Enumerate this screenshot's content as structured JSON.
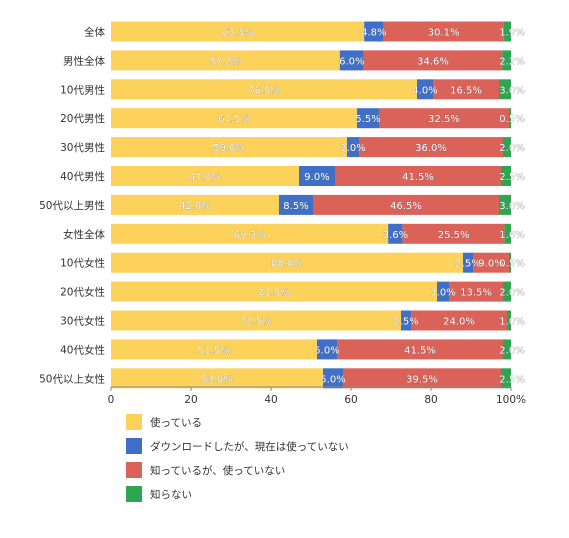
{
  "chart_data": {
    "type": "bar",
    "orientation": "horizontal",
    "stacked": true,
    "categories": [
      "全体",
      "男性全体",
      "10代男性",
      "20代男性",
      "30代男性",
      "40代男性",
      "50代以上男性",
      "女性全体",
      "10代女性",
      "20代女性",
      "30代女性",
      "40代女性",
      "50代以上女性"
    ],
    "series": [
      {
        "name": "使っている",
        "color": "#fcd25b",
        "values": [
          63.3,
          57.2,
          76.5,
          61.5,
          59.0,
          47.0,
          42.0,
          69.3,
          88.0,
          81.5,
          72.5,
          51.5,
          53.0
        ],
        "labels": [
          "63.3%",
          "57.2%",
          "76.5%",
          "61.5%",
          "59.0%",
          "47.0%",
          "42.0%",
          "69.3%",
          "88.0%",
          "81.5%",
          "72.5%",
          "51.5%",
          "53.0%"
        ]
      },
      {
        "name": "ダウンロードしたが、現在は使っていない",
        "color": "#3f6fc6",
        "values": [
          4.8,
          6.0,
          4.0,
          5.5,
          3.0,
          9.0,
          8.5,
          3.6,
          2.5,
          3.0,
          2.5,
          5.0,
          5.0
        ],
        "labels": [
          "4.8%",
          "6.0%",
          "4.0%",
          "5.5%",
          "3.0%",
          "9.0%",
          "8.5%",
          "3.6%",
          "2.5%",
          "3.0%",
          "2.5%",
          "5.0%",
          "5.0%"
        ]
      },
      {
        "name": "知っているが、使っていない",
        "color": "#db6259",
        "values": [
          30.1,
          34.6,
          16.5,
          32.5,
          36.0,
          41.5,
          46.5,
          25.5,
          9.0,
          13.5,
          24.0,
          41.5,
          39.5
        ],
        "labels": [
          "30.1%",
          "34.6%",
          "16.5%",
          "32.5%",
          "36.0%",
          "41.5%",
          "46.5%",
          "25.5%",
          "9.0%",
          "13.5%",
          "24.0%",
          "41.5%",
          "39.5%"
        ]
      },
      {
        "name": "知らない",
        "color": "#2fa552",
        "values": [
          1.9,
          2.2,
          3.0,
          0.5,
          2.0,
          2.5,
          3.0,
          1.6,
          0.5,
          2.0,
          1.0,
          2.0,
          2.5
        ],
        "labels": [
          "1.9%",
          "2.2%",
          "3.0%",
          "0.5%",
          "2.0%",
          "2.5%",
          "3.0%",
          "1.6%",
          "0.5%",
          "2.0%",
          "1.0%",
          "2.0%",
          "2.5%"
        ]
      }
    ],
    "xlim": [
      0,
      100
    ],
    "xticks": [
      "0",
      "20",
      "40",
      "60",
      "80",
      "100%"
    ],
    "xtick_values": [
      0,
      20,
      40,
      60,
      80,
      100
    ],
    "grid": false,
    "legend_position": "bottom-left"
  }
}
